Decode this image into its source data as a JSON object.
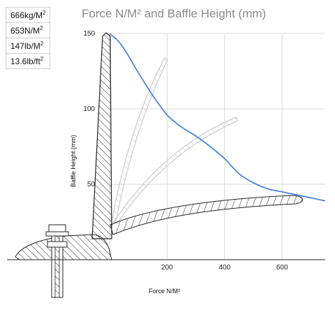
{
  "panel": {
    "rows": [
      {
        "value": "666kg/M",
        "sup": "2"
      },
      {
        "value": "653N/M",
        "sup": "2"
      },
      {
        "value": "147lb/M",
        "sup": "2"
      },
      {
        "value": "13.6lb/ft",
        "sup": "2"
      }
    ]
  },
  "chart_data": {
    "type": "line",
    "title": "Force N/M² and Baffle Height (mm)",
    "xlabel": "Force N/M²",
    "ylabel": "Baffle Height (mm)",
    "xlim": [
      0,
      750
    ],
    "ylim": [
      0,
      150
    ],
    "xticks": [
      200,
      400,
      600
    ],
    "yticks": [
      50,
      100,
      150
    ],
    "grid": true,
    "series": [
      {
        "color": "#4a86e0",
        "x": [
          0,
          30,
          60,
          100,
          150,
          200,
          250,
          300,
          350,
          400,
          450,
          500,
          550,
          600,
          650,
          700,
          750
        ],
        "y": [
          150,
          145,
          137,
          124,
          109,
          96,
          88,
          82,
          75,
          67,
          57,
          51,
          47,
          45,
          43,
          41,
          39
        ]
      }
    ]
  },
  "colors": {
    "curve": "#4a86e0",
    "grid": "#d8d8d8",
    "baffle_solid": "#222222",
    "baffle_faded": "#c4c4c4"
  }
}
